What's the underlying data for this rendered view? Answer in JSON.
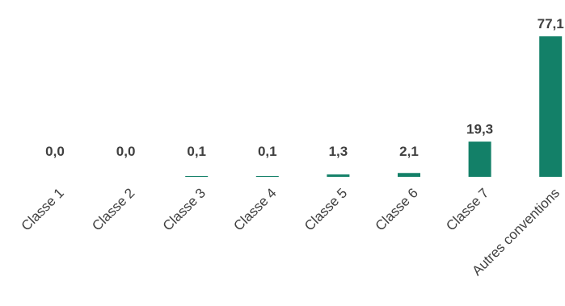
{
  "colors": {
    "bar": "#138068",
    "text": "#404040"
  },
  "chart_data": {
    "type": "bar",
    "title": "",
    "xlabel": "",
    "ylabel": "",
    "categories": [
      "Classe 1",
      "Classe 2",
      "Classe 3",
      "Classe 4",
      "Classe 5",
      "Classe 6",
      "Classe 7",
      "Autres conventions"
    ],
    "values": [
      0.0,
      0.0,
      0.1,
      0.1,
      1.3,
      2.1,
      19.3,
      77.1
    ],
    "value_labels": [
      "0,0",
      "0,0",
      "0,1",
      "0,1",
      "1,3",
      "2,1",
      "19,3",
      "77,1"
    ],
    "ylim": [
      0,
      77.1
    ],
    "grid": false,
    "legend": "none"
  }
}
